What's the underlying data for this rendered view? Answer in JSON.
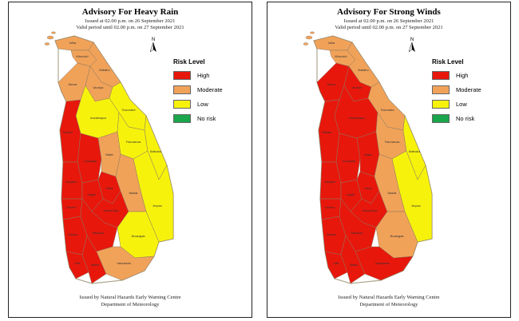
{
  "colors": {
    "high": "#e8170c",
    "moderate": "#f1a259",
    "low": "#f7f20c",
    "no_risk": "#1aa64a",
    "border": "#8a7a60"
  },
  "legend": {
    "title": "Risk Level",
    "items": [
      {
        "label": "High",
        "color": "#e8170c"
      },
      {
        "label": "Moderate",
        "color": "#f1a259"
      },
      {
        "label": "Low",
        "color": "#f7f20c"
      },
      {
        "label": "No risk",
        "color": "#1aa64a"
      }
    ]
  },
  "north_label": "N",
  "footer": {
    "line1": "Issued by Natural Hazards Early Warning Centre",
    "line2": "Department of Meteorology"
  },
  "maps": [
    {
      "title": "Advisory For Heavy Rain",
      "issued": "Issued at 02.00 p.m. on 26 September 2021",
      "valid": "Valid period until 02.00 p.m. on 27 September 2021",
      "districts": {
        "Jaffna": "moderate",
        "Kilinochchi": "moderate",
        "Mullaitivu": "moderate",
        "Mannar": "moderate",
        "Vavuniya": "moderate",
        "Trincomalee": "low",
        "Anuradhapura": "low",
        "Puttalam": "high",
        "Polonnaruwa": "low",
        "Kurunegala": "high",
        "Matale": "moderate",
        "Batticaloa": "low",
        "Gampaha": "high",
        "Kegalle": "high",
        "Kandy": "high",
        "Ampara": "low",
        "Colombo": "high",
        "Nuwara Eliya": "high",
        "Badulla": "moderate",
        "Kalutara": "high",
        "Ratnapura": "high",
        "Monaragala": "low",
        "Galle": "high",
        "Matara": "high",
        "Hambantota": "moderate"
      }
    },
    {
      "title": "Advisory For Strong Winds",
      "issued": "Issued at 02.00 p.m. on 26 September 2021",
      "valid": "Valid period until 02.00 p.m. on 27 September 2021",
      "districts": {
        "Jaffna": "moderate",
        "Kilinochchi": "moderate",
        "Mullaitivu": "moderate",
        "Mannar": "high",
        "Vavuniya": "high",
        "Trincomalee": "moderate",
        "Anuradhapura": "high",
        "Puttalam": "high",
        "Polonnaruwa": "moderate",
        "Kurunegala": "high",
        "Matale": "high",
        "Batticaloa": "low",
        "Gampaha": "high",
        "Kegalle": "high",
        "Kandy": "high",
        "Ampara": "low",
        "Colombo": "high",
        "Nuwara Eliya": "high",
        "Badulla": "moderate",
        "Kalutara": "high",
        "Ratnapura": "high",
        "Monaragala": "moderate",
        "Galle": "high",
        "Matara": "high",
        "Hambantota": "high"
      }
    }
  ]
}
